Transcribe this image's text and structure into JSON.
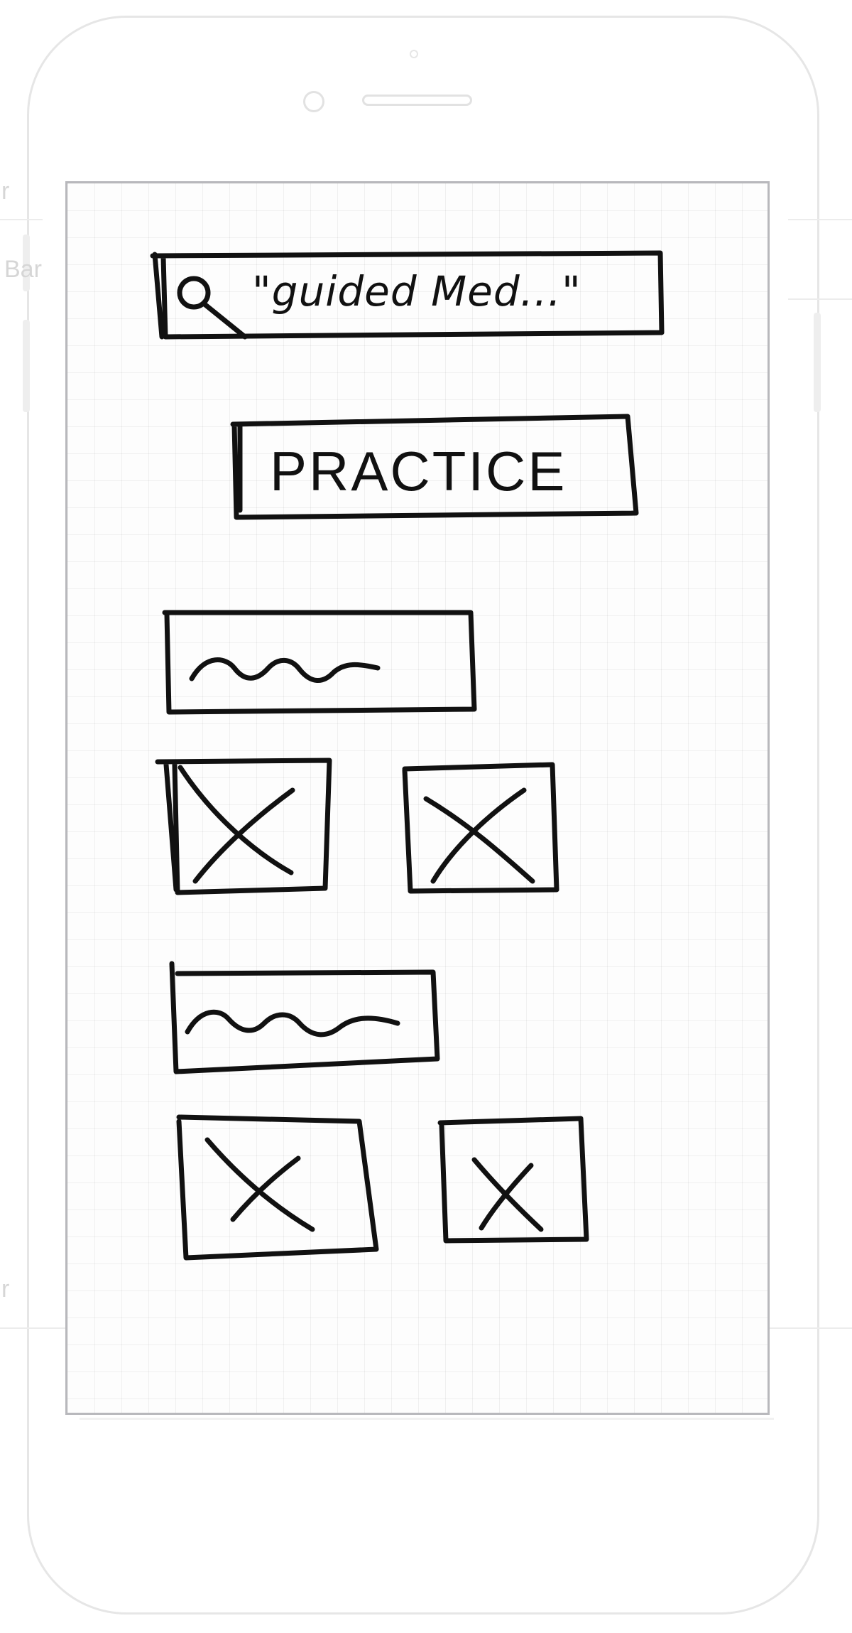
{
  "background_labels": {
    "upper": "Bar",
    "upper_partial": "r",
    "lower_partial": "r"
  },
  "search": {
    "query": "\"guided Med...\"",
    "icon": "search-icon"
  },
  "practice": {
    "label": "PRACTICE"
  },
  "sections": [
    {
      "heading": "scribble-placeholder",
      "images": [
        "image-placeholder-x",
        "image-placeholder-x"
      ]
    },
    {
      "heading": "scribble-placeholder",
      "images": [
        "image-placeholder-x",
        "image-placeholder-x"
      ]
    }
  ],
  "colors": {
    "ink": "#111111",
    "frame": "#e6e6e6",
    "screen_border": "#b8b8bc"
  }
}
